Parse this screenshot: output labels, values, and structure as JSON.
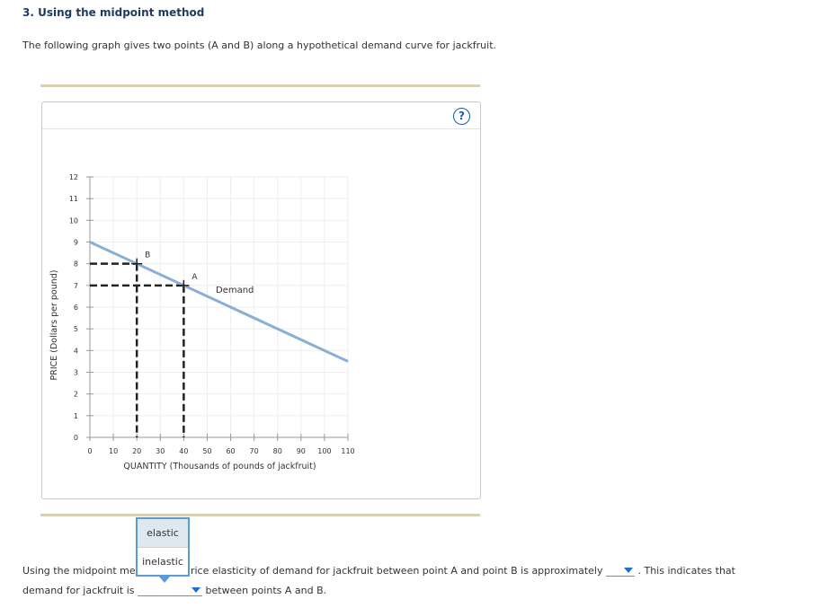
{
  "question": {
    "title": "3. Using the midpoint method",
    "intro": "The following graph gives two points (A and B) along a hypothetical demand curve for jackfruit."
  },
  "graph": {
    "help_label": "?"
  },
  "chart_data": {
    "type": "line",
    "xlabel": "QUANTITY (Thousands of pounds of jackfruit)",
    "ylabel": "PRICE (Dollars per pound)",
    "xlim": [
      0,
      110
    ],
    "ylim": [
      0,
      12
    ],
    "x_ticks": [
      0,
      10,
      20,
      30,
      40,
      50,
      60,
      70,
      80,
      90,
      100,
      110
    ],
    "y_ticks": [
      0,
      1,
      2,
      3,
      4,
      5,
      6,
      7,
      8,
      9,
      10,
      11,
      12
    ],
    "grid": true,
    "series": [
      {
        "name": "Demand",
        "color": "#8aaed4",
        "x": [
          0,
          110
        ],
        "y": [
          9,
          3.5
        ]
      }
    ],
    "points": [
      {
        "label": "B",
        "x": 20,
        "y": 8
      },
      {
        "label": "A",
        "x": 40,
        "y": 7
      }
    ]
  },
  "answer": {
    "dropdown_options": [
      "elastic",
      "inelastic"
    ],
    "line1_part1": "Using the midpoint met",
    "line1_part2": "rice elasticity of demand for jackfruit between point A and point B is approximately",
    "line1_part3": ". This indicates that",
    "line2_part1": "demand for jackfruit is",
    "line2_part2": "between points A and B."
  }
}
